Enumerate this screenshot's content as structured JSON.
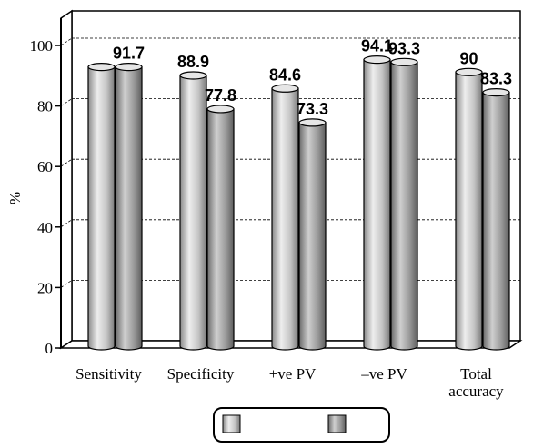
{
  "chart_data": {
    "type": "bar",
    "categories": [
      [
        "Sensitivity"
      ],
      [
        "Specificity"
      ],
      [
        "+ve PV"
      ],
      [
        "–ve PV"
      ],
      [
        "Total",
        "accuracy"
      ]
    ],
    "series": [
      {
        "values": [
          91.7,
          88.9,
          84.6,
          94.1,
          90
        ],
        "color": "#c4c4c4"
      },
      {
        "values": [
          91.7,
          77.8,
          73.3,
          93.3,
          83.3
        ],
        "color": "#9a9a9a"
      }
    ],
    "data_labels": [
      [
        "",
        "91.7"
      ],
      [
        "88.9",
        "77.8"
      ],
      [
        "84.6",
        "73.3"
      ],
      [
        "94.1",
        "93.3"
      ],
      [
        "90",
        "83.3"
      ]
    ],
    "ylabel": "%",
    "ylim": [
      0,
      100
    ],
    "yticks": [
      0,
      20,
      40,
      60,
      80,
      100
    ],
    "grid": true,
    "legend_position": "bottom-center"
  }
}
